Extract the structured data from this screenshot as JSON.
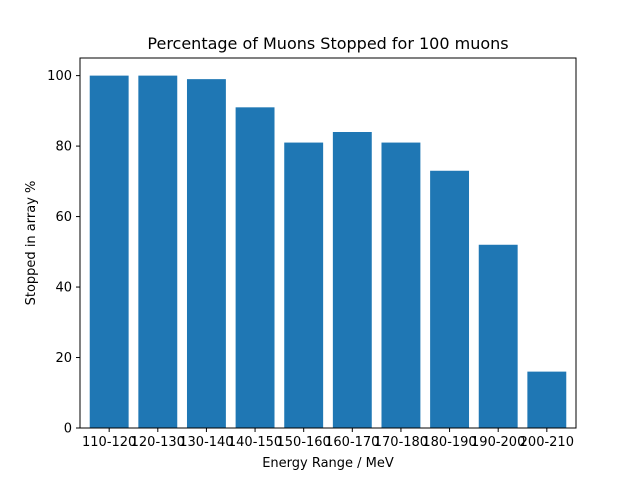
{
  "chart_data": {
    "type": "bar",
    "title": "Percentage of Muons Stopped for 100 muons",
    "xlabel": "Energy Range / MeV",
    "ylabel": "Stopped in array %",
    "categories": [
      "110-120",
      "120-130",
      "130-140",
      "140-150",
      "150-160",
      "160-170",
      "170-180",
      "180-190",
      "190-200",
      "200-210"
    ],
    "values": [
      100,
      100,
      99,
      91,
      81,
      84,
      81,
      73,
      52,
      16
    ],
    "ylim": [
      0,
      105
    ],
    "yticks": [
      0,
      20,
      40,
      60,
      80,
      100
    ],
    "grid": false,
    "bar_color": "#1f77b4"
  }
}
